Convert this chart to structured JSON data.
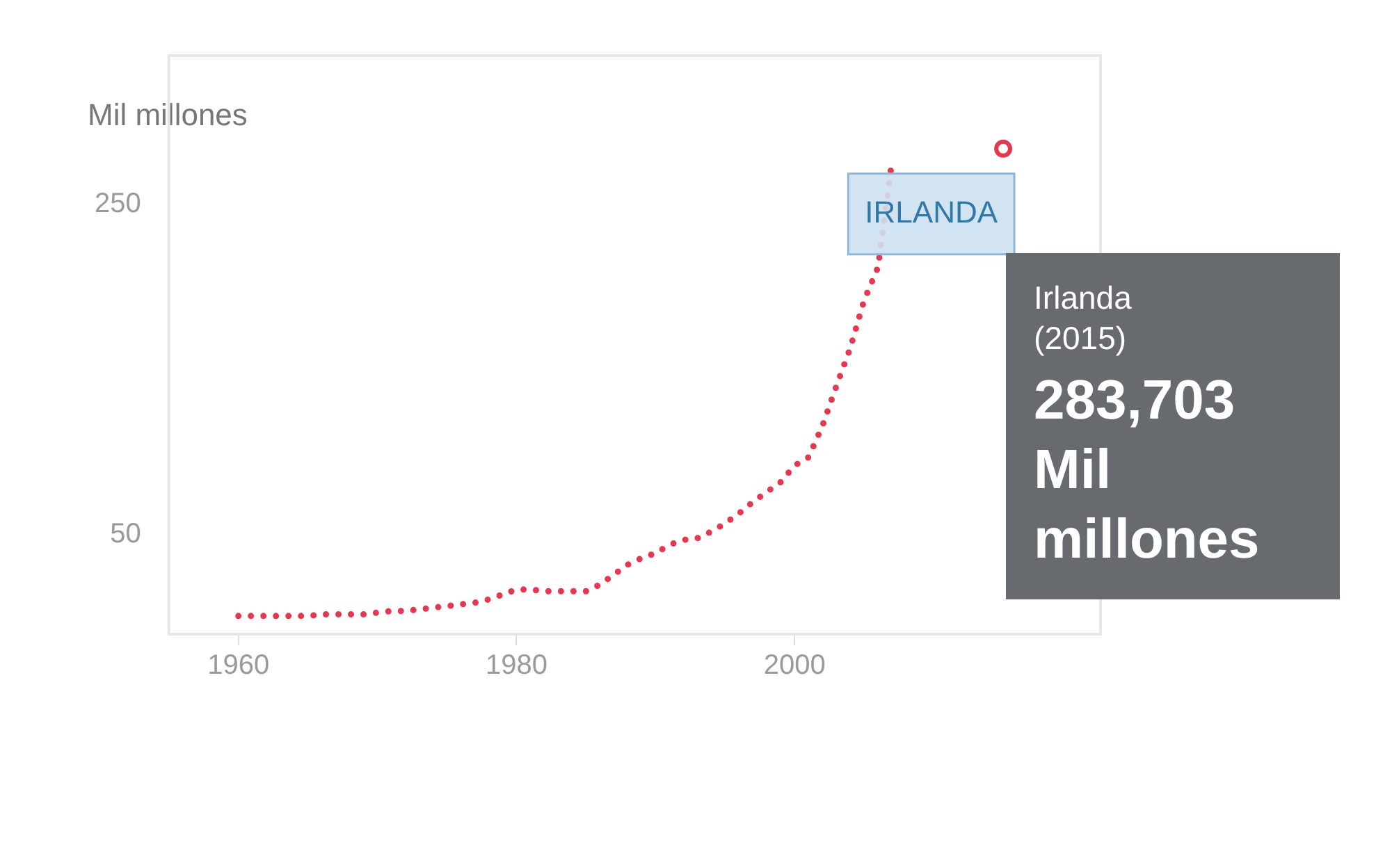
{
  "chart_data": {
    "type": "line",
    "ylabel": "Mil millones",
    "x": [
      1960,
      1961,
      1962,
      1963,
      1964,
      1965,
      1966,
      1967,
      1968,
      1969,
      1970,
      1971,
      1972,
      1973,
      1974,
      1975,
      1976,
      1977,
      1978,
      1979,
      1980,
      1981,
      1982,
      1983,
      1984,
      1985,
      1986,
      1987,
      1988,
      1989,
      1990,
      1991,
      1992,
      1993,
      1994,
      1995,
      1996,
      1997,
      1998,
      1999,
      2000,
      2001,
      2002,
      2003,
      2004,
      2005,
      2006,
      2007,
      2008,
      2009,
      2010,
      2011,
      2012,
      2013,
      2014,
      2015
    ],
    "series": [
      {
        "name": "IRLANDA",
        "color": "#e8364f",
        "values": [
          1,
          1,
          1,
          1,
          1,
          1,
          2,
          2,
          2,
          2,
          3,
          4,
          4,
          5,
          6,
          7,
          8,
          9,
          11,
          14,
          17,
          17,
          16,
          16,
          16,
          16,
          20,
          26,
          32,
          36,
          39,
          44,
          47,
          48,
          52,
          57,
          63,
          70,
          76,
          82,
          92,
          97,
          116,
          140,
          163,
          192,
          212,
          276,
          null,
          null,
          null,
          null,
          null,
          null,
          null,
          283.703
        ]
      }
    ],
    "xlim": [
      1955,
      2022
    ],
    "xticks": [
      1960,
      1980,
      2000
    ],
    "ylim": [
      -10,
      340
    ],
    "yticks": [
      50,
      250
    ],
    "grid": false,
    "legend": false,
    "marker": "none",
    "line_style": "dotted",
    "annotations": [
      {
        "text": "Irlanda (2015) 283,703 Mil millones",
        "x": 2015,
        "y": 283.703
      }
    ]
  }
}
